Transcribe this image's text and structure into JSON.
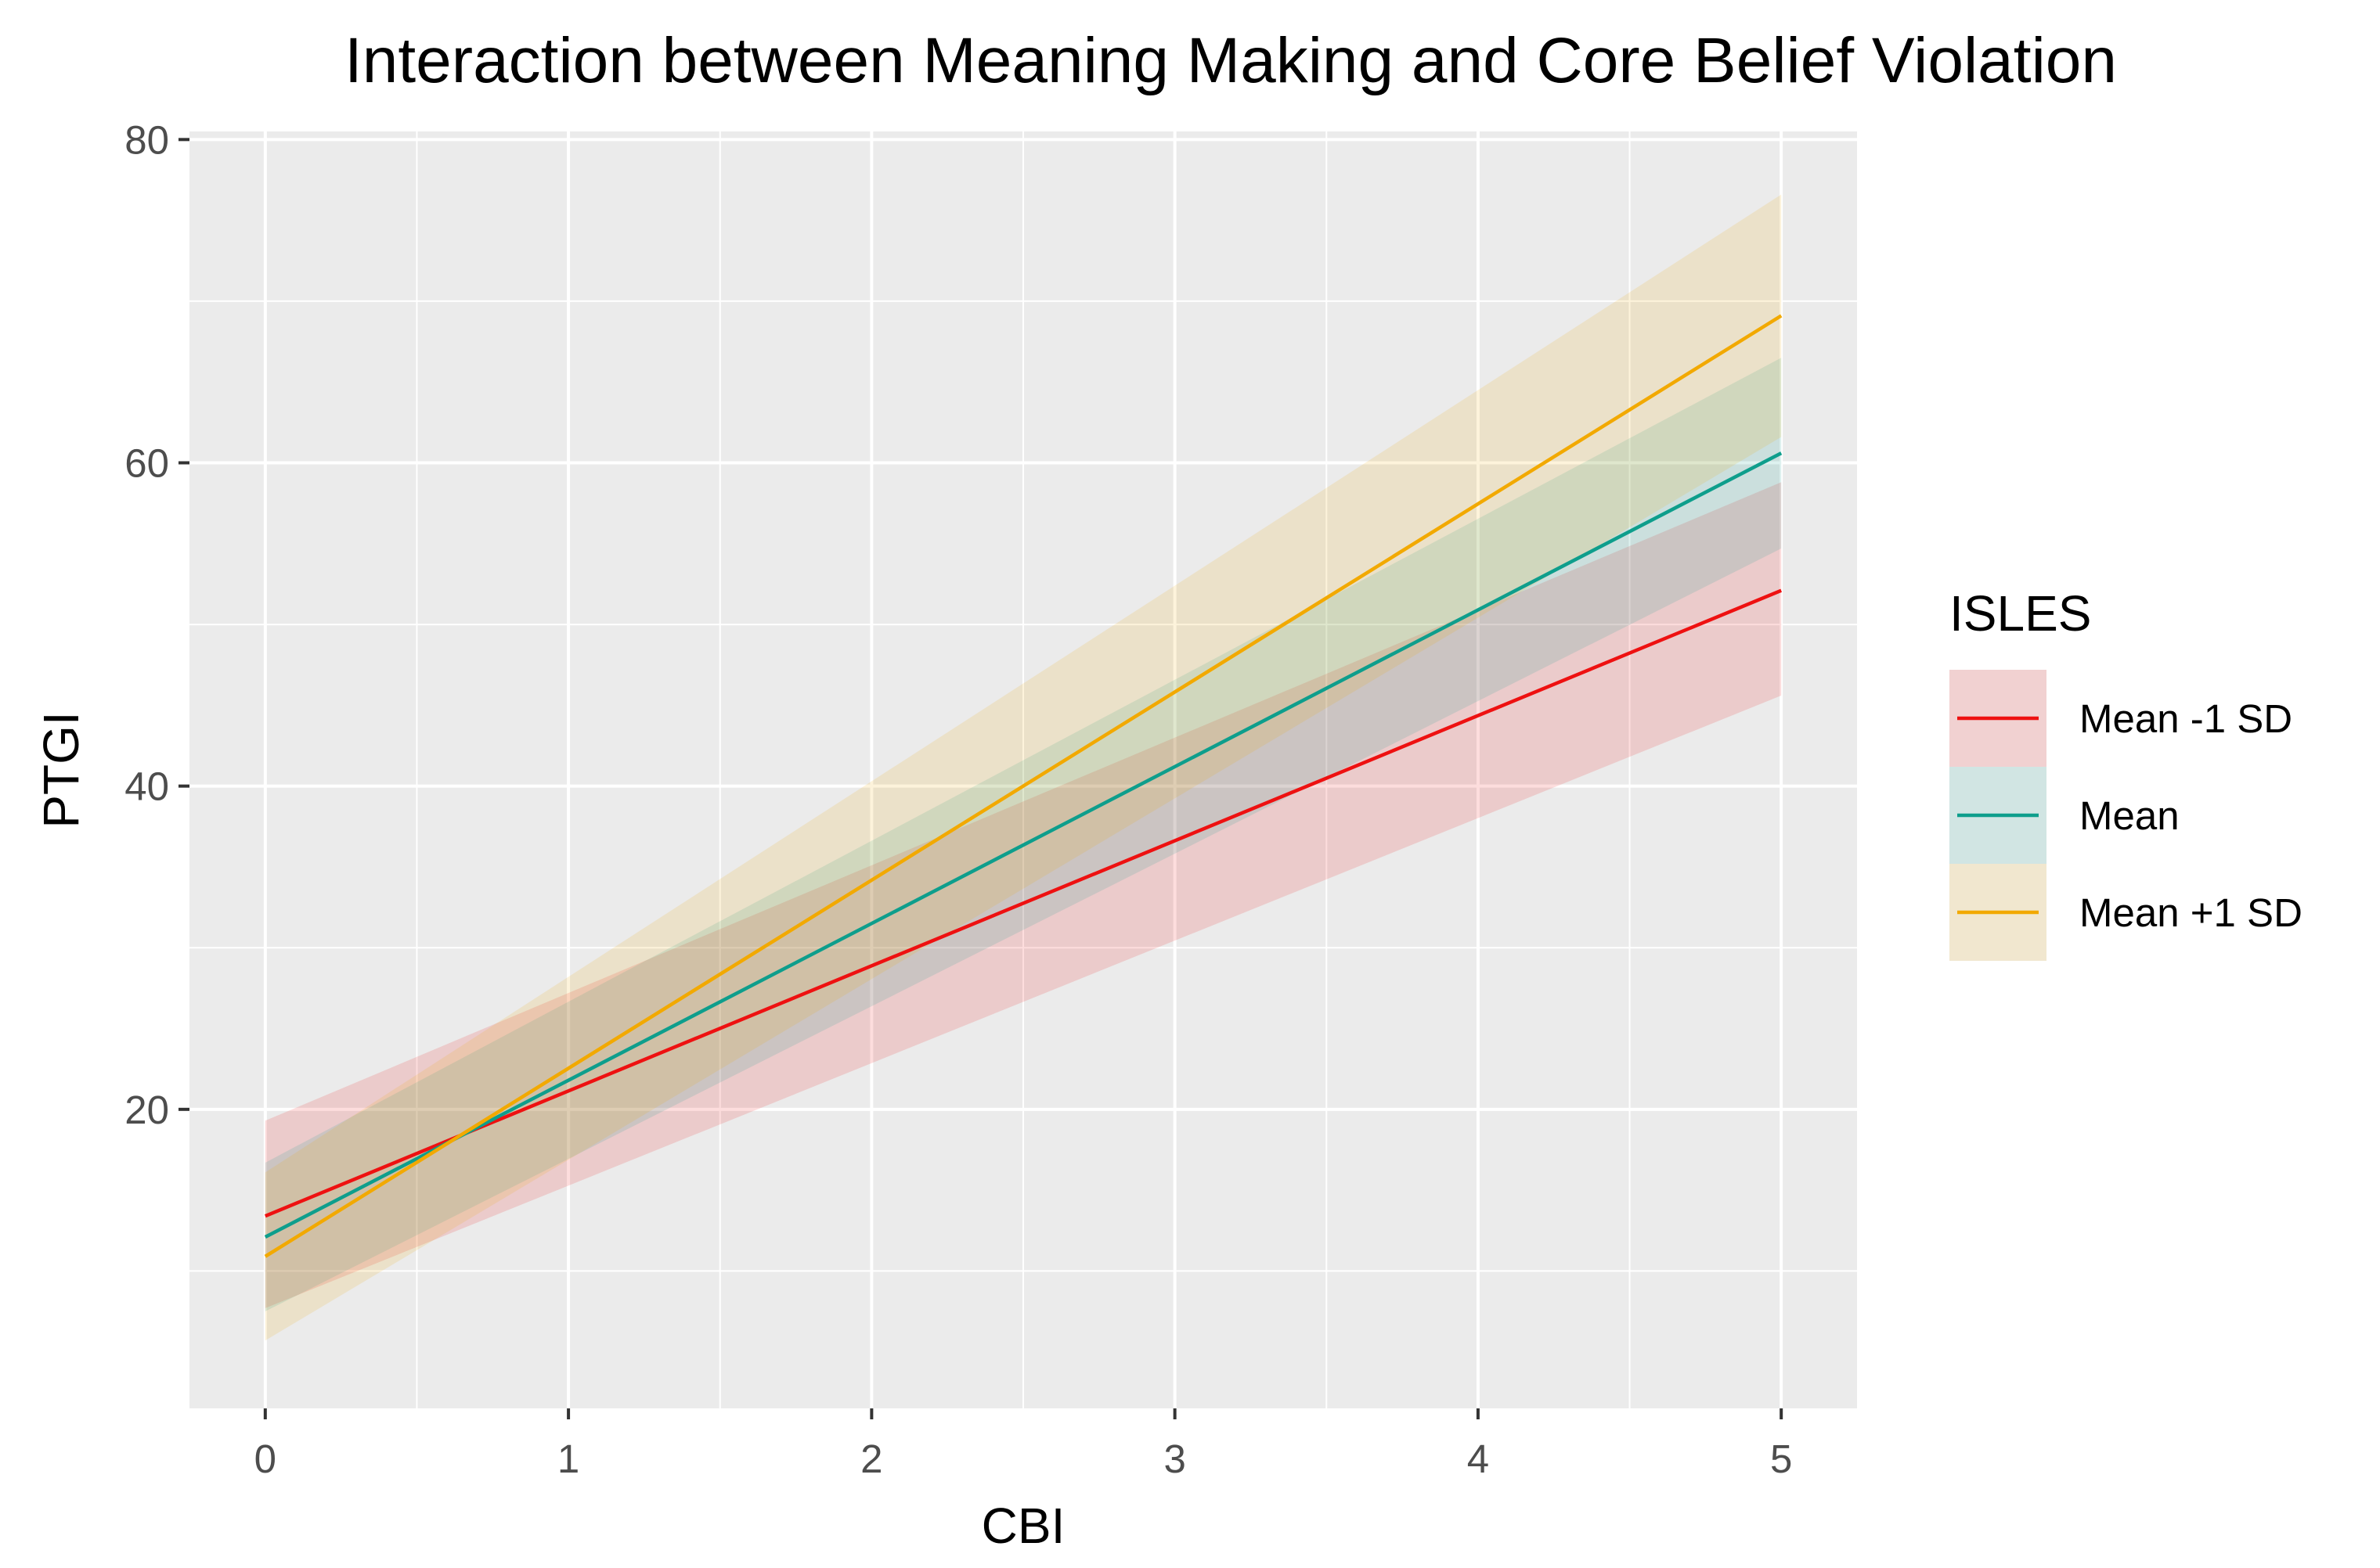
{
  "chart_data": {
    "type": "line",
    "title": "Interaction between Meaning Making and Core Belief Violation",
    "xlabel": "CBI",
    "ylabel": "PTGI",
    "xlim": [
      -0.25,
      5.25
    ],
    "ylim": [
      1.5,
      80.5
    ],
    "x_ticks": [
      0,
      1,
      2,
      3,
      4,
      5
    ],
    "x_tick_labels": [
      "0",
      "1",
      "2",
      "3",
      "4",
      "5"
    ],
    "y_ticks": [
      20,
      40,
      60,
      80
    ],
    "y_tick_labels": [
      "20",
      "40",
      "60",
      "80"
    ],
    "grid": true,
    "legend": {
      "title": "ISLES",
      "position": "right"
    },
    "series": [
      {
        "name": "Mean -1 SD",
        "color": "#ee1111",
        "x": [
          0,
          5
        ],
        "values": [
          13.4,
          52.1
        ],
        "ci_lower": [
          7.7,
          45.6
        ],
        "ci_upper": [
          19.3,
          58.8
        ]
      },
      {
        "name": "Mean",
        "color": "#0e9e8c",
        "x": [
          0,
          5
        ],
        "values": [
          12.1,
          60.6
        ],
        "ci_lower": [
          7.5,
          54.7
        ],
        "ci_upper": [
          16.7,
          66.5
        ]
      },
      {
        "name": "Mean +1 SD",
        "color": "#f2a900",
        "x": [
          0,
          5
        ],
        "values": [
          10.9,
          69.1
        ],
        "ci_lower": [
          5.7,
          61.6
        ],
        "ci_upper": [
          16.1,
          76.6
        ]
      }
    ]
  },
  "colors": {
    "panel_background": "#ebebeb",
    "grid_major": "#ffffff",
    "legend_key_background": "#f2f2f2"
  }
}
